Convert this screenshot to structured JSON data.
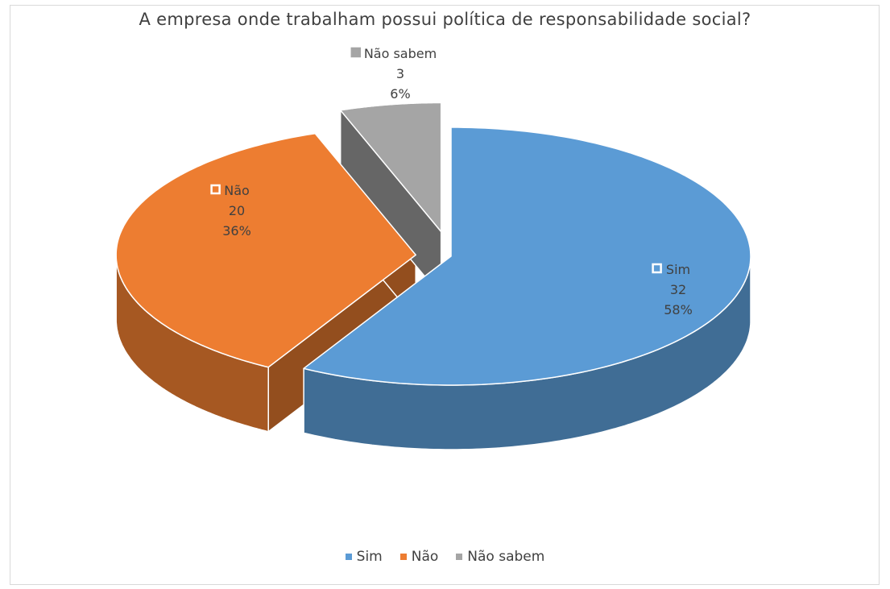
{
  "chart_data": {
    "type": "pie",
    "title": "A empresa onde trabalham possui política de responsabilidade social?",
    "categories": [
      "Sim",
      "Não",
      "Não sabem"
    ],
    "values": [
      32,
      20,
      3
    ],
    "percent_labels": [
      "58%",
      "36%",
      "6%"
    ],
    "colors": [
      "#5b9bd5",
      "#ed7d31",
      "#a5a5a5"
    ],
    "legend_position": "bottom",
    "style": "3d-exploded"
  }
}
